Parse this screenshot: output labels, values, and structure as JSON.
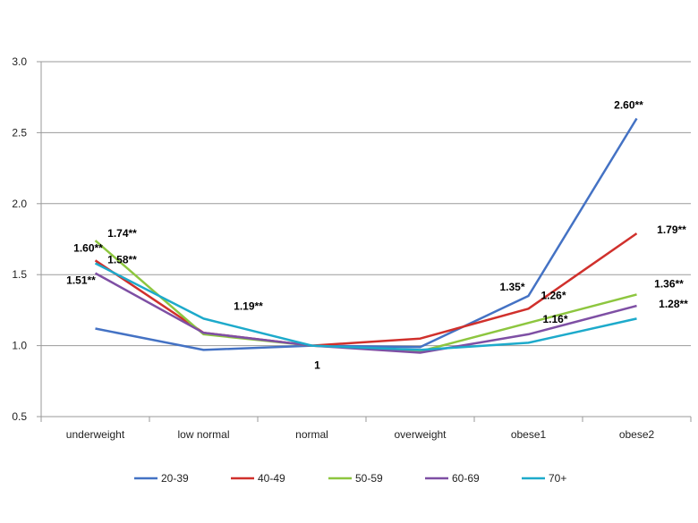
{
  "chart_data": {
    "type": "line",
    "categories": [
      "underweight",
      "low normal",
      "normal",
      "overweight",
      "obese1",
      "obese2"
    ],
    "ylim": [
      0.5,
      3.0
    ],
    "yticks": [
      "0.5",
      "1.0",
      "1.5",
      "2.0",
      "2.5",
      "3.0"
    ],
    "grid": "horizontal",
    "legend_position": "bottom",
    "series": [
      {
        "name": "20-39",
        "color": "#4472C4",
        "values": [
          1.12,
          0.97,
          1.0,
          0.99,
          1.35,
          2.6
        ]
      },
      {
        "name": "40-49",
        "color": "#D0302C",
        "values": [
          1.6,
          1.09,
          1.0,
          1.05,
          1.26,
          1.79
        ]
      },
      {
        "name": "50-59",
        "color": "#8DC63F",
        "values": [
          1.74,
          1.08,
          1.0,
          0.96,
          1.16,
          1.36
        ]
      },
      {
        "name": "60-69",
        "color": "#7E4FA4",
        "values": [
          1.51,
          1.09,
          1.0,
          0.95,
          1.08,
          1.28
        ]
      },
      {
        "name": "70+",
        "color": "#1DAACB",
        "values": [
          1.58,
          1.19,
          1.0,
          0.97,
          1.02,
          1.19
        ]
      }
    ],
    "data_labels": [
      {
        "text": "1.74**",
        "category": 0,
        "value": 1.74
      },
      {
        "text": "1.60**",
        "category": 0,
        "value": 1.6
      },
      {
        "text": "1.58**",
        "category": 0,
        "value": 1.58
      },
      {
        "text": "1.51**",
        "category": 0,
        "value": 1.51
      },
      {
        "text": "1.19**",
        "category": 1,
        "value": 1.19
      },
      {
        "text": "1",
        "category": 2,
        "value": 1.0
      },
      {
        "text": "1.35*",
        "category": 4,
        "value": 1.35
      },
      {
        "text": "1.26*",
        "category": 4,
        "value": 1.26
      },
      {
        "text": "1.16*",
        "category": 4,
        "value": 1.16
      },
      {
        "text": "2.60**",
        "category": 5,
        "value": 2.6
      },
      {
        "text": "1.79**",
        "category": 5,
        "value": 1.79
      },
      {
        "text": "1.36**",
        "category": 5,
        "value": 1.36
      },
      {
        "text": "1.28**",
        "category": 5,
        "value": 1.28
      }
    ]
  }
}
